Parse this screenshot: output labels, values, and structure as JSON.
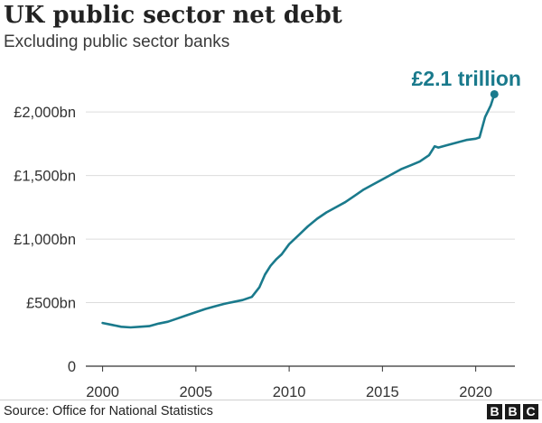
{
  "header": {
    "title": "UK public sector net debt",
    "subtitle": "Excluding public sector banks"
  },
  "footer": {
    "source": "Source: Office for National Statistics",
    "logo_letters": [
      "B",
      "B",
      "C"
    ]
  },
  "chart_data": {
    "type": "line",
    "title": "UK public sector net debt",
    "subtitle": "Excluding public sector banks",
    "xlabel": "",
    "ylabel": "",
    "xlim": [
      1999.1,
      2022.1
    ],
    "ylim": [
      0,
      2200
    ],
    "x_ticks": [
      2000,
      2005,
      2010,
      2015,
      2020
    ],
    "x_tick_labels": [
      "2000",
      "2005",
      "2010",
      "2015",
      "2020"
    ],
    "y_ticks": [
      0,
      500,
      1000,
      1500,
      2000
    ],
    "y_tick_labels": [
      "0",
      "£500bn",
      "£1,000bn",
      "£1,500bn",
      "£2,000bn"
    ],
    "grid": "horizontal",
    "line_color": "#1a7a8c",
    "series": [
      {
        "x": [
          2000.0,
          2000.5,
          2001.0,
          2001.5,
          2002.0,
          2002.5,
          2003.0,
          2003.5,
          2004.0,
          2004.5,
          2005.0,
          2005.5,
          2006.0,
          2006.5,
          2007.0,
          2007.5,
          2008.0,
          2008.4,
          2008.7,
          2009.0,
          2009.3,
          2009.6,
          2010.0,
          2010.5,
          2011.0,
          2011.5,
          2012.0,
          2012.5,
          2013.0,
          2013.5,
          2014.0,
          2014.5,
          2015.0,
          2015.5,
          2016.0,
          2016.5,
          2017.0,
          2017.5,
          2017.8,
          2018.0,
          2018.5,
          2019.0,
          2019.5,
          2020.0,
          2020.2,
          2020.5,
          2020.8,
          2021.0
        ],
        "values": [
          340,
          325,
          310,
          305,
          310,
          315,
          335,
          350,
          375,
          400,
          425,
          450,
          470,
          490,
          505,
          520,
          545,
          620,
          720,
          790,
          840,
          880,
          960,
          1030,
          1100,
          1160,
          1210,
          1250,
          1290,
          1340,
          1390,
          1430,
          1470,
          1510,
          1550,
          1580,
          1610,
          1660,
          1730,
          1720,
          1740,
          1760,
          1780,
          1790,
          1800,
          1960,
          2050,
          2140
        ]
      }
    ],
    "annotations": [
      {
        "text": "£2.1 trillion",
        "x": 2021.0,
        "y": 2140
      }
    ]
  }
}
